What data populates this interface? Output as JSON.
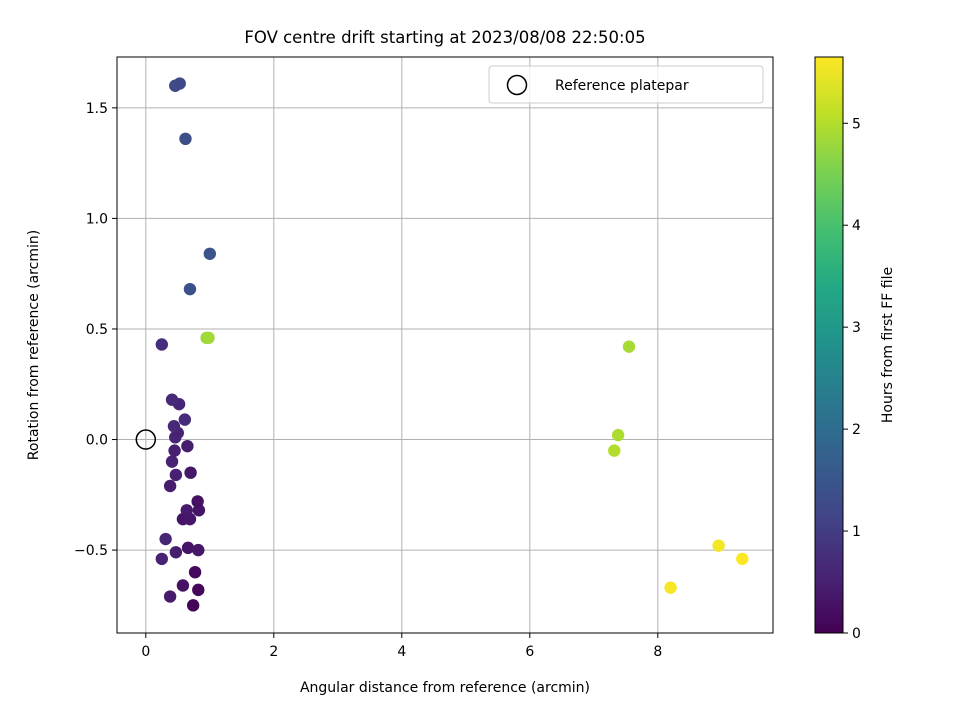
{
  "chart_data": {
    "type": "scatter",
    "title": "FOV centre drift starting at 2023/08/08 22:50:05",
    "xlabel": "Angular distance from reference (arcmin)",
    "ylabel": "Rotation from reference (arcmin)",
    "xlim": [
      -0.45,
      9.8
    ],
    "ylim": [
      -0.875,
      1.73
    ],
    "xticks": [
      0,
      2,
      4,
      6,
      8
    ],
    "xtick_labels": [
      "0",
      "2",
      "4",
      "6",
      "8"
    ],
    "yticks": [
      -0.5,
      0.0,
      0.5,
      1.0,
      1.5
    ],
    "ytick_labels": [
      "−0.5",
      "0.0",
      "0.5",
      "1.0",
      "1.5"
    ],
    "grid": true,
    "legend": {
      "placement": "top-right",
      "entries": [
        {
          "label": "Reference platepar",
          "marker": "open-circle",
          "color": "#000000"
        }
      ]
    },
    "reference_point": {
      "x": 0.0,
      "y": 0.0
    },
    "colorbar": {
      "label": "Hours from first FF file",
      "range": [
        0,
        5.65
      ],
      "ticks": [
        0,
        1,
        2,
        3,
        4,
        5
      ],
      "tick_labels": [
        "0",
        "1",
        "2",
        "3",
        "4",
        "5"
      ],
      "colormap": "viridis"
    },
    "points": [
      {
        "x": 0.74,
        "y": -0.75,
        "hours": 0.05
      },
      {
        "x": 0.82,
        "y": -0.68,
        "hours": 0.1
      },
      {
        "x": 0.77,
        "y": -0.6,
        "hours": 0.15
      },
      {
        "x": 0.58,
        "y": -0.66,
        "hours": 0.25
      },
      {
        "x": 0.38,
        "y": -0.71,
        "hours": 0.4
      },
      {
        "x": 0.66,
        "y": -0.49,
        "hours": 0.3
      },
      {
        "x": 0.82,
        "y": -0.5,
        "hours": 0.35
      },
      {
        "x": 0.47,
        "y": -0.51,
        "hours": 0.45
      },
      {
        "x": 0.25,
        "y": -0.54,
        "hours": 0.55
      },
      {
        "x": 0.31,
        "y": -0.45,
        "hours": 0.6
      },
      {
        "x": 0.58,
        "y": -0.36,
        "hours": 0.3
      },
      {
        "x": 0.69,
        "y": -0.36,
        "hours": 0.35
      },
      {
        "x": 0.64,
        "y": -0.32,
        "hours": 0.4
      },
      {
        "x": 0.83,
        "y": -0.32,
        "hours": 0.3
      },
      {
        "x": 0.81,
        "y": -0.28,
        "hours": 0.25
      },
      {
        "x": 0.38,
        "y": -0.21,
        "hours": 0.45
      },
      {
        "x": 0.47,
        "y": -0.16,
        "hours": 0.5
      },
      {
        "x": 0.7,
        "y": -0.15,
        "hours": 0.35
      },
      {
        "x": 0.41,
        "y": -0.1,
        "hours": 0.55
      },
      {
        "x": 0.45,
        "y": -0.05,
        "hours": 0.5
      },
      {
        "x": 0.65,
        "y": -0.03,
        "hours": 0.45
      },
      {
        "x": 0.46,
        "y": 0.01,
        "hours": 0.6
      },
      {
        "x": 0.5,
        "y": 0.03,
        "hours": 0.55
      },
      {
        "x": 0.44,
        "y": 0.06,
        "hours": 0.65
      },
      {
        "x": 0.61,
        "y": 0.09,
        "hours": 0.7
      },
      {
        "x": 0.52,
        "y": 0.16,
        "hours": 0.6
      },
      {
        "x": 0.41,
        "y": 0.18,
        "hours": 0.65
      },
      {
        "x": 0.25,
        "y": 0.43,
        "hours": 0.75
      },
      {
        "x": 0.69,
        "y": 0.68,
        "hours": 1.4
      },
      {
        "x": 1.0,
        "y": 0.84,
        "hours": 1.45
      },
      {
        "x": 0.62,
        "y": 1.36,
        "hours": 1.35
      },
      {
        "x": 0.46,
        "y": 1.6,
        "hours": 1.3
      },
      {
        "x": 0.53,
        "y": 1.61,
        "hours": 1.25
      },
      {
        "x": 0.95,
        "y": 0.46,
        "hours": 4.8
      },
      {
        "x": 0.98,
        "y": 0.46,
        "hours": 4.85
      },
      {
        "x": 7.55,
        "y": 0.42,
        "hours": 4.9
      },
      {
        "x": 7.38,
        "y": 0.02,
        "hours": 4.95
      },
      {
        "x": 7.32,
        "y": -0.05,
        "hours": 5.0
      },
      {
        "x": 8.2,
        "y": -0.67,
        "hours": 5.6
      },
      {
        "x": 8.95,
        "y": -0.48,
        "hours": 5.55
      },
      {
        "x": 9.32,
        "y": -0.54,
        "hours": 5.65
      }
    ]
  }
}
